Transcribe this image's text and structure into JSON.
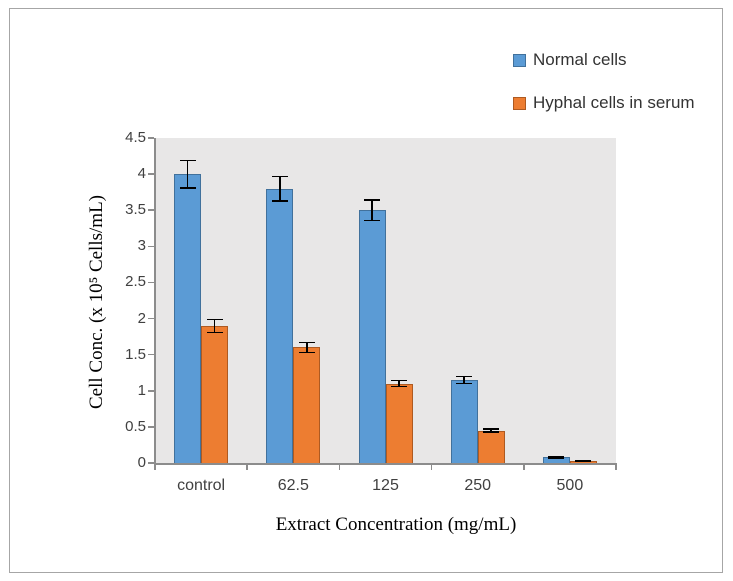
{
  "figure": {
    "background": "#FFFFFF",
    "border_color": "#A6A6A6"
  },
  "chart_data": {
    "type": "bar",
    "title": "",
    "categories": [
      "control",
      "62.5",
      "125",
      "250",
      "500"
    ],
    "series": [
      {
        "name": "Normal cells",
        "color": "#5B9BD5",
        "border_color": "#41719C",
        "values": [
          4.0,
          3.8,
          3.5,
          1.15,
          0.08
        ],
        "error_bars": [
          0.2,
          0.18,
          0.15,
          0.06,
          0.02
        ]
      },
      {
        "name": "Hyphal cells in serum",
        "color": "#ED7D31",
        "border_color": "#AE5A21",
        "values": [
          1.9,
          1.6,
          1.1,
          0.45,
          0.03
        ],
        "error_bars": [
          0.1,
          0.08,
          0.05,
          0.03,
          0.01
        ]
      }
    ],
    "xlabel": "Extract Concentration (mg/mL)",
    "ylabel": "Cell Conc. (x 10⁵ Cells/mL)",
    "ylim": [
      0,
      4.5
    ],
    "ytick_step": 0.5,
    "yticks": [
      "0",
      "0.5",
      "1",
      "1.5",
      "2",
      "2.5",
      "3",
      "3.5",
      "4",
      "4.5"
    ],
    "grid": false,
    "legend_position": "top-right",
    "plot_background": "#E8E7E7",
    "axis_color": "#8C8C8C",
    "error_bar_color": "#000000",
    "tick_label_color": "#404040"
  }
}
